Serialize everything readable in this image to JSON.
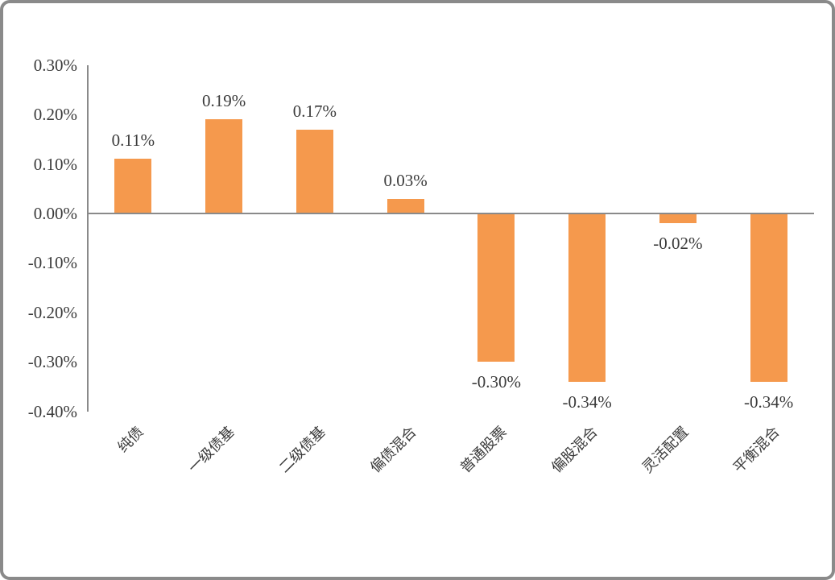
{
  "chart_data": {
    "type": "bar",
    "title": "",
    "xlabel": "",
    "ylabel": "",
    "categories": [
      "纯债",
      "一级债基",
      "二级债基",
      "偏债混合",
      "普通股票",
      "偏股混合",
      "灵活配置",
      "平衡混合"
    ],
    "values": [
      0.11,
      0.19,
      0.17,
      0.03,
      -0.3,
      -0.34,
      -0.02,
      -0.34
    ],
    "data_labels": [
      "0.11%",
      "0.19%",
      "0.17%",
      "0.03%",
      "-0.30%",
      "-0.34%",
      "-0.02%",
      "-0.34%"
    ],
    "y_tick_labels": [
      "0.30%",
      "0.20%",
      "0.10%",
      "0.00%",
      "-0.10%",
      "-0.20%",
      "-0.30%",
      "-0.40%"
    ],
    "y_tick_values": [
      0.3,
      0.2,
      0.1,
      0.0,
      -0.1,
      -0.2,
      -0.3,
      -0.4
    ],
    "ylim": [
      -0.4,
      0.3
    ],
    "grid": false,
    "legend": false,
    "bar_color": "#F5994D",
    "axis_color": "#8A8A8A",
    "text_color": "#3A3A3A",
    "frame_border_color": "#8A8A8A",
    "background_color": "#FFFFFF"
  }
}
